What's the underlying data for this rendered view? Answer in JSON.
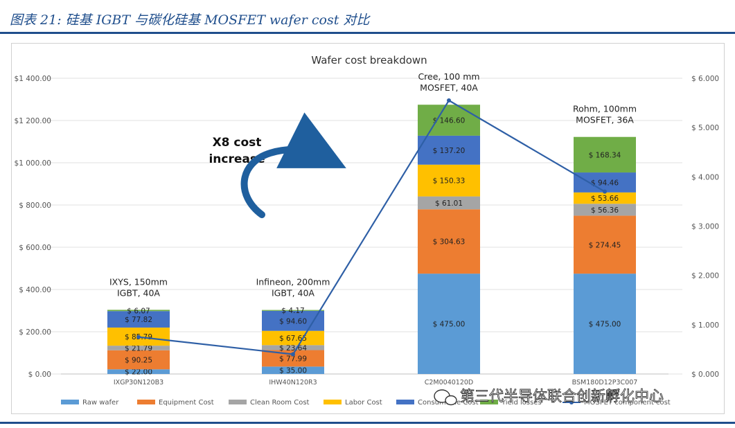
{
  "figure_title": "图表 21:  硅基 IGBT 与碳化硅基 MOSFET wafer cost 对比",
  "watermark": "第三代半导体联合创新孵化中心",
  "chart_data": {
    "type": "bar",
    "stacked": true,
    "title": "Wafer cost breakdown",
    "categories": [
      "IXGP30N120B3",
      "IHW40N120R3",
      "C2M0040120D",
      "BSM180D12P3C007"
    ],
    "category_notes": [
      "IXYS, 150mm\nIGBT, 40A",
      "Infineon, 200mm\nIGBT, 40A",
      "Cree, 100 mm\nMOSFET, 40A",
      "Rohm, 100mm\nMOSFET, 36A"
    ],
    "y_ticks": [
      "$ 0.00",
      "$ 200.00",
      "$ 400.00",
      "$ 600.00",
      "$ 800.00",
      "$1 000.00",
      "$1 200.00",
      "$1 400.00"
    ],
    "ylim": [
      0,
      1400
    ],
    "y2_ticks": [
      "$ 0.000",
      "$ 1.000",
      "$ 2.000",
      "$ 3.000",
      "$ 4.000",
      "$ 5.000",
      "$ 6.000"
    ],
    "y2lim": [
      0,
      6
    ],
    "series": [
      {
        "name": "Raw wafer",
        "color": "#5b9bd5",
        "values": [
          22.0,
          35.0,
          475.0,
          475.0
        ],
        "labels": [
          "$ 22.00",
          "$ 35.00",
          "$ 475.00",
          "$ 475.00"
        ]
      },
      {
        "name": "Equipment Cost",
        "color": "#ed7d31",
        "values": [
          90.25,
          77.99,
          304.63,
          274.45
        ],
        "labels": [
          "$ 90.25",
          "$ 77.99",
          "$ 304.63",
          "$ 274.45"
        ]
      },
      {
        "name": "Clean Room Cost",
        "color": "#a5a5a5",
        "values": [
          21.79,
          23.64,
          61.01,
          56.36
        ],
        "labels": [
          "$ 21.79",
          "$ 23.64",
          "$ 61.01",
          "$ 56.36"
        ]
      },
      {
        "name": "Labor Cost",
        "color": "#ffc000",
        "values": [
          85.79,
          67.65,
          150.33,
          53.66
        ],
        "labels": [
          "$ 85.79",
          "$ 67.65",
          "$ 150.33",
          "$ 53.66"
        ]
      },
      {
        "name": "Consumable Cost",
        "color": "#4472c4",
        "values": [
          77.82,
          94.6,
          137.2,
          94.46
        ],
        "labels": [
          "$ 77.82",
          "$ 94.60",
          "$ 137.20",
          "$ 94.46"
        ]
      },
      {
        "name": "Yield losses",
        "color": "#70ad47",
        "values": [
          6.07,
          4.17,
          146.6,
          168.34
        ],
        "labels": [
          "$ 6.07",
          "$ 4.17",
          "$ 146.60",
          "$ 168.34"
        ]
      }
    ],
    "line_series": {
      "name": "MOSFET component cost",
      "color": "#2e5fa6",
      "axis": "right",
      "values": [
        0.75,
        0.4,
        5.55,
        3.7
      ]
    },
    "annotation": "X8 cost\nincrease",
    "legend_position": "bottom"
  }
}
